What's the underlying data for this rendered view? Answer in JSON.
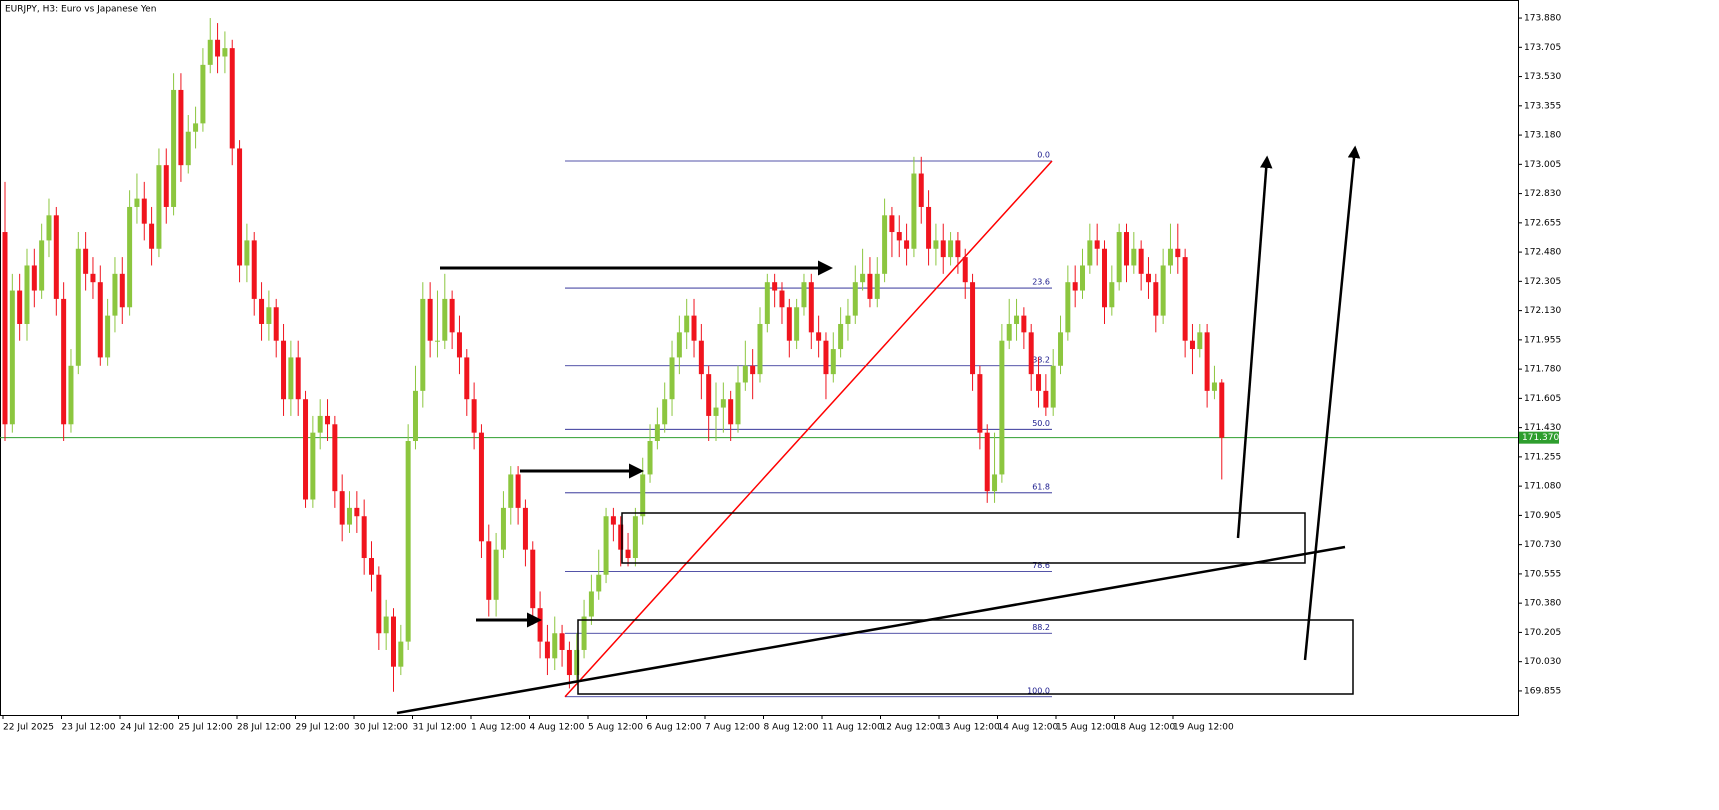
{
  "chart_data": {
    "type": "candlestick",
    "title": "EURJPY, H3:  Euro vs Japanese Yen",
    "colors": {
      "up": "#8cc63f",
      "down": "#f0141e",
      "current": "#2e9e2e",
      "fib": "#1a1a8c",
      "fib_trend": "#ff0000"
    },
    "ylim": [
      169.711,
      173.988
    ],
    "yticks": [
      {
        "value": 173.88,
        "label": "173.880"
      },
      173.705,
      {
        "value": 173.53,
        "label": "173.530"
      },
      173.355,
      {
        "value": 173.18,
        "label": "173.180"
      },
      173.005,
      {
        "value": 172.83,
        "label": "172.830"
      },
      172.655,
      {
        "value": 172.48,
        "label": "172.480"
      },
      172.305,
      {
        "value": 172.13,
        "label": "172.130"
      },
      171.955,
      {
        "value": 171.78,
        "label": "171.780"
      },
      171.605,
      {
        "value": 171.43,
        "label": "171.430"
      },
      171.255,
      {
        "value": 171.08,
        "label": "171.080"
      },
      170.905,
      {
        "value": 170.73,
        "label": "170.730"
      },
      170.555,
      {
        "value": 170.38,
        "label": "170.380"
      },
      170.205,
      {
        "value": 170.03,
        "label": "170.030"
      },
      169.855
    ],
    "x_labels": [
      "22 Jul 2025",
      "23 Jul 12:00",
      "24 Jul 12:00",
      "25 Jul 12:00",
      "28 Jul 12:00",
      "29 Jul 12:00",
      "30 Jul 12:00",
      "31 Jul 12:00",
      "1 Aug 12:00",
      "4 Aug 12:00",
      "5 Aug 12:00",
      "6 Aug 12:00",
      "7 Aug 12:00",
      "8 Aug 12:00",
      "11 Aug 12:00",
      "12 Aug 12:00",
      "13 Aug 12:00",
      "14 Aug 12:00",
      "15 Aug 12:00",
      "18 Aug 12:00",
      "19 Aug 12:00"
    ],
    "current_price": {
      "value": 171.37,
      "label": "171.370"
    },
    "fib_levels": [
      {
        "label": "0.0",
        "price": 173.025
      },
      {
        "label": "23.6",
        "price": 172.265
      },
      {
        "label": "38.2",
        "price": 171.8
      },
      {
        "label": "50.0",
        "price": 171.42
      },
      {
        "label": "61.8",
        "price": 171.04
      },
      {
        "label": "78.6",
        "price": 170.57
      },
      {
        "label": "88.2",
        "price": 170.2
      },
      {
        "label": "100.0",
        "price": 169.82
      }
    ],
    "candles": [
      [
        172.6,
        172.9,
        171.35,
        171.45
      ],
      [
        171.45,
        172.35,
        171.4,
        172.25
      ],
      [
        172.25,
        172.35,
        171.95,
        172.05
      ],
      [
        172.05,
        172.5,
        171.95,
        172.4
      ],
      [
        172.4,
        172.5,
        172.15,
        172.25
      ],
      [
        172.25,
        172.65,
        172.2,
        172.55
      ],
      [
        172.55,
        172.8,
        172.45,
        172.7
      ],
      [
        172.7,
        172.75,
        172.1,
        172.2
      ],
      [
        172.2,
        172.3,
        171.35,
        171.45
      ],
      [
        171.45,
        171.9,
        171.4,
        171.8
      ],
      [
        171.8,
        172.6,
        171.75,
        172.5
      ],
      [
        172.5,
        172.6,
        172.25,
        172.35
      ],
      [
        172.35,
        172.45,
        172.2,
        172.3
      ],
      [
        172.3,
        172.4,
        171.8,
        171.85
      ],
      [
        171.85,
        172.2,
        171.8,
        172.1
      ],
      [
        172.1,
        172.45,
        172.0,
        172.35
      ],
      [
        172.35,
        172.45,
        172.05,
        172.15
      ],
      [
        172.15,
        172.85,
        172.1,
        172.75
      ],
      [
        172.75,
        172.95,
        172.65,
        172.8
      ],
      [
        172.8,
        172.9,
        172.55,
        172.65
      ],
      [
        172.65,
        172.75,
        172.4,
        172.5
      ],
      [
        172.5,
        173.1,
        172.45,
        173.0
      ],
      [
        173.0,
        173.1,
        172.65,
        172.75
      ],
      [
        172.75,
        173.55,
        172.7,
        173.45
      ],
      [
        173.45,
        173.55,
        172.9,
        173.0
      ],
      [
        173.0,
        173.3,
        172.95,
        173.2
      ],
      [
        173.2,
        173.35,
        173.1,
        173.25
      ],
      [
        173.25,
        173.7,
        173.2,
        173.6
      ],
      [
        173.6,
        173.88,
        173.55,
        173.75
      ],
      [
        173.75,
        173.85,
        173.55,
        173.65
      ],
      [
        173.65,
        173.8,
        173.55,
        173.7
      ],
      [
        173.7,
        173.75,
        173.0,
        173.1
      ],
      [
        173.1,
        173.15,
        172.3,
        172.4
      ],
      [
        172.4,
        172.65,
        172.3,
        172.55
      ],
      [
        172.55,
        172.6,
        172.1,
        172.2
      ],
      [
        172.2,
        172.3,
        171.95,
        172.05
      ],
      [
        172.05,
        172.25,
        171.95,
        172.15
      ],
      [
        172.15,
        172.2,
        171.85,
        171.95
      ],
      [
        171.95,
        172.05,
        171.5,
        171.6
      ],
      [
        171.6,
        171.95,
        171.5,
        171.85
      ],
      [
        171.85,
        171.95,
        171.5,
        171.6
      ],
      [
        171.6,
        171.65,
        170.95,
        171.0
      ],
      [
        171.0,
        171.5,
        170.95,
        171.4
      ],
      [
        171.4,
        171.6,
        171.3,
        171.5
      ],
      [
        171.5,
        171.6,
        171.35,
        171.45
      ],
      [
        171.45,
        171.5,
        170.95,
        171.05
      ],
      [
        171.05,
        171.15,
        170.75,
        170.85
      ],
      [
        170.85,
        171.05,
        170.8,
        170.95
      ],
      [
        170.95,
        171.05,
        170.8,
        170.9
      ],
      [
        170.9,
        171.0,
        170.55,
        170.65
      ],
      [
        170.65,
        170.75,
        170.45,
        170.55
      ],
      [
        170.55,
        170.6,
        170.1,
        170.2
      ],
      [
        170.2,
        170.4,
        170.1,
        170.3
      ],
      [
        170.3,
        170.35,
        169.85,
        170.0
      ],
      [
        170.0,
        170.25,
        169.95,
        170.15
      ],
      [
        170.15,
        171.45,
        170.1,
        171.35
      ],
      [
        171.35,
        171.8,
        171.3,
        171.65
      ],
      [
        171.65,
        172.3,
        171.55,
        172.2
      ],
      [
        172.2,
        172.3,
        171.85,
        171.95
      ],
      [
        171.95,
        172.25,
        171.85,
        171.95
      ],
      [
        171.95,
        172.35,
        171.9,
        172.2
      ],
      [
        172.2,
        172.25,
        171.9,
        172.0
      ],
      [
        172.0,
        172.1,
        171.75,
        171.85
      ],
      [
        171.85,
        171.9,
        171.5,
        171.6
      ],
      [
        171.6,
        171.7,
        171.3,
        171.4
      ],
      [
        171.4,
        171.45,
        170.65,
        170.75
      ],
      [
        170.75,
        170.85,
        170.3,
        170.4
      ],
      [
        170.4,
        170.8,
        170.3,
        170.7
      ],
      [
        170.7,
        171.05,
        170.65,
        170.95
      ],
      [
        170.95,
        171.2,
        170.85,
        171.15
      ],
      [
        171.15,
        171.2,
        170.85,
        170.95
      ],
      [
        170.95,
        171.0,
        170.6,
        170.7
      ],
      [
        170.7,
        170.75,
        170.25,
        170.35
      ],
      [
        170.35,
        170.45,
        170.05,
        170.15
      ],
      [
        170.15,
        170.25,
        169.95,
        170.05
      ],
      [
        170.05,
        170.3,
        169.98,
        170.2
      ],
      [
        170.2,
        170.25,
        170.0,
        170.1
      ],
      [
        170.1,
        170.15,
        169.87,
        169.95
      ],
      [
        169.95,
        170.2,
        169.9,
        170.1
      ],
      [
        170.1,
        170.4,
        170.05,
        170.3
      ],
      [
        170.3,
        170.55,
        170.25,
        170.45
      ],
      [
        170.45,
        170.7,
        170.4,
        170.55
      ],
      [
        170.55,
        170.95,
        170.5,
        170.9
      ],
      [
        170.9,
        170.95,
        170.75,
        170.85
      ],
      [
        170.85,
        170.9,
        170.6,
        170.7
      ],
      [
        170.7,
        170.8,
        170.6,
        170.65
      ],
      [
        170.65,
        170.95,
        170.6,
        170.9
      ],
      [
        170.9,
        171.25,
        170.85,
        171.15
      ],
      [
        171.15,
        171.45,
        171.1,
        171.35
      ],
      [
        171.35,
        171.55,
        171.3,
        171.45
      ],
      [
        171.45,
        171.7,
        171.4,
        171.6
      ],
      [
        171.6,
        171.95,
        171.5,
        171.85
      ],
      [
        171.85,
        172.1,
        171.75,
        172.0
      ],
      [
        172.0,
        172.2,
        171.9,
        172.1
      ],
      [
        172.1,
        172.2,
        171.85,
        171.95
      ],
      [
        171.95,
        172.05,
        171.6,
        171.75
      ],
      [
        171.75,
        171.8,
        171.35,
        171.5
      ],
      [
        171.5,
        171.7,
        171.35,
        171.55
      ],
      [
        171.55,
        171.7,
        171.4,
        171.6
      ],
      [
        171.6,
        171.65,
        171.35,
        171.45
      ],
      [
        171.45,
        171.8,
        171.4,
        171.7
      ],
      [
        171.7,
        171.95,
        171.65,
        171.8
      ],
      [
        171.8,
        171.9,
        171.6,
        171.75
      ],
      [
        171.75,
        172.15,
        171.7,
        172.05
      ],
      [
        172.05,
        172.35,
        172.0,
        172.3
      ],
      [
        172.3,
        172.35,
        172.15,
        172.25
      ],
      [
        172.25,
        172.3,
        172.05,
        172.15
      ],
      [
        172.15,
        172.2,
        171.85,
        171.95
      ],
      [
        171.95,
        172.2,
        171.9,
        172.15
      ],
      [
        172.15,
        172.35,
        172.1,
        172.3
      ],
      [
        172.3,
        172.35,
        171.9,
        172.0
      ],
      [
        172.0,
        172.1,
        171.85,
        171.95
      ],
      [
        171.95,
        172.0,
        171.6,
        171.75
      ],
      [
        171.75,
        172.0,
        171.7,
        171.9
      ],
      [
        171.9,
        172.15,
        171.85,
        172.05
      ],
      [
        172.05,
        172.2,
        171.95,
        172.1
      ],
      [
        172.1,
        172.4,
        172.05,
        172.3
      ],
      [
        172.3,
        172.5,
        172.25,
        172.35
      ],
      [
        172.35,
        172.45,
        172.15,
        172.2
      ],
      [
        172.2,
        172.45,
        172.15,
        172.35
      ],
      [
        172.35,
        172.8,
        172.3,
        172.7
      ],
      [
        172.7,
        172.75,
        172.45,
        172.6
      ],
      [
        172.6,
        172.7,
        172.45,
        172.55
      ],
      [
        172.55,
        172.65,
        172.4,
        172.5
      ],
      [
        172.5,
        173.05,
        172.45,
        172.95
      ],
      [
        172.95,
        173.05,
        172.65,
        172.75
      ],
      [
        172.75,
        172.85,
        172.4,
        172.5
      ],
      [
        172.5,
        172.65,
        172.4,
        172.55
      ],
      [
        172.55,
        172.65,
        172.35,
        172.45
      ],
      [
        172.45,
        172.6,
        172.4,
        172.55
      ],
      [
        172.55,
        172.6,
        172.35,
        172.45
      ],
      [
        172.45,
        172.5,
        172.2,
        172.3
      ],
      [
        172.3,
        172.35,
        171.65,
        171.75
      ],
      [
        171.75,
        171.8,
        171.3,
        171.4
      ],
      [
        171.4,
        171.45,
        170.98,
        171.05
      ],
      [
        171.05,
        171.4,
        170.98,
        171.15
      ],
      [
        171.15,
        172.05,
        171.1,
        171.95
      ],
      [
        171.95,
        172.2,
        171.9,
        172.05
      ],
      [
        172.05,
        172.2,
        171.95,
        172.1
      ],
      [
        172.1,
        172.15,
        171.9,
        172.0
      ],
      [
        172.0,
        172.05,
        171.65,
        171.75
      ],
      [
        171.75,
        171.85,
        171.55,
        171.65
      ],
      [
        171.65,
        171.75,
        171.5,
        171.55
      ],
      [
        171.55,
        171.9,
        171.5,
        171.8
      ],
      [
        171.8,
        172.1,
        171.75,
        172.0
      ],
      [
        172.0,
        172.4,
        171.95,
        172.3
      ],
      [
        172.3,
        172.4,
        172.15,
        172.25
      ],
      [
        172.25,
        172.5,
        172.2,
        172.4
      ],
      [
        172.4,
        172.65,
        172.35,
        172.55
      ],
      [
        172.55,
        172.65,
        172.4,
        172.5
      ],
      [
        172.5,
        172.55,
        172.05,
        172.15
      ],
      [
        172.15,
        172.4,
        172.1,
        172.3
      ],
      [
        172.3,
        172.65,
        172.25,
        172.6
      ],
      [
        172.6,
        172.65,
        172.3,
        172.4
      ],
      [
        172.4,
        172.6,
        172.35,
        172.5
      ],
      [
        172.5,
        172.55,
        172.25,
        172.35
      ],
      [
        172.35,
        172.45,
        172.2,
        172.3
      ],
      [
        172.3,
        172.35,
        172.0,
        172.1
      ],
      [
        172.1,
        172.5,
        172.05,
        172.4
      ],
      [
        172.4,
        172.65,
        172.35,
        172.5
      ],
      [
        172.5,
        172.65,
        172.35,
        172.45
      ],
      [
        172.45,
        172.5,
        171.85,
        171.95
      ],
      [
        171.95,
        172.05,
        171.75,
        171.9
      ],
      [
        171.9,
        172.05,
        171.85,
        172.0
      ],
      [
        172.0,
        172.05,
        171.55,
        171.65
      ],
      [
        171.65,
        171.8,
        171.6,
        171.7
      ],
      [
        171.7,
        171.72,
        171.12,
        171.37
      ]
    ]
  }
}
